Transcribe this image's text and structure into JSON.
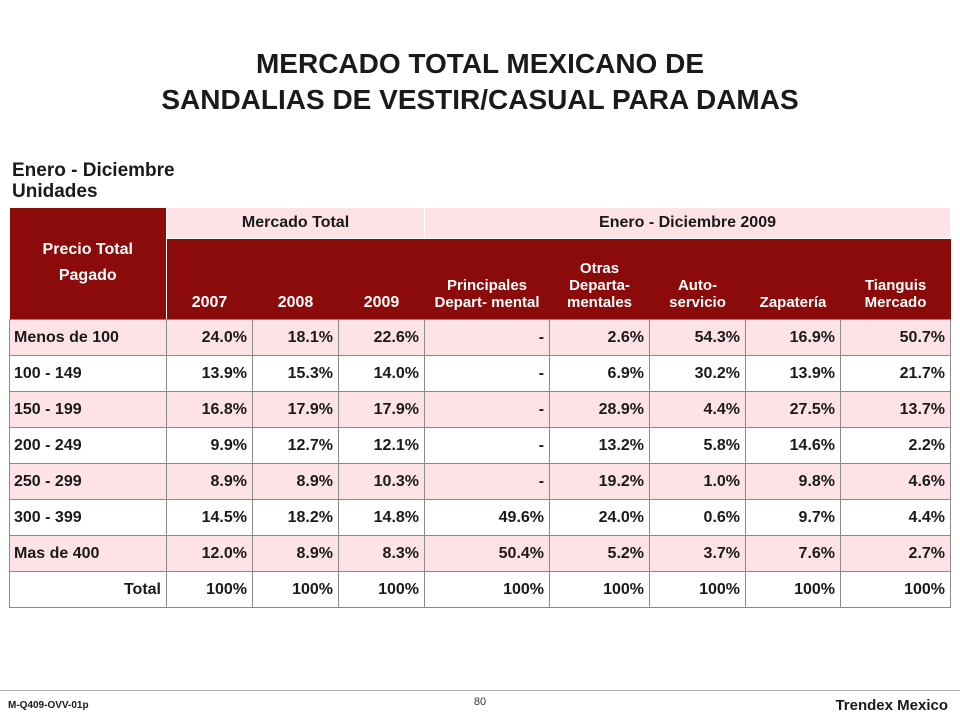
{
  "title": {
    "line1": "MERCADO TOTAL MEXICANO DE",
    "line2": "SANDALIAS DE VESTIR/CASUAL PARA DAMAS"
  },
  "subtitle": {
    "line1": "Enero - Diciembre",
    "line2": "Unidades"
  },
  "table": {
    "corner_line1": "Precio Total",
    "corner_line2": "Pagado",
    "group1": "Mercado Total",
    "group2": "Enero - Diciembre 2009",
    "columns": [
      "2007",
      "2008",
      "2009",
      "Principales Depart- mental",
      "Otras Departa- mentales",
      "Auto- servicio",
      "Zapatería",
      "Tianguis Mercado"
    ],
    "rows": [
      {
        "label": "Menos de 100",
        "values": [
          "24.0%",
          "18.1%",
          "22.6%",
          "-",
          "2.6%",
          "54.3%",
          "16.9%",
          "50.7%"
        ]
      },
      {
        "label": "100 - 149",
        "values": [
          "13.9%",
          "15.3%",
          "14.0%",
          "-",
          "6.9%",
          "30.2%",
          "13.9%",
          "21.7%"
        ]
      },
      {
        "label": "150 - 199",
        "values": [
          "16.8%",
          "17.9%",
          "17.9%",
          "-",
          "28.9%",
          "4.4%",
          "27.5%",
          "13.7%"
        ]
      },
      {
        "label": "200 - 249",
        "values": [
          "9.9%",
          "12.7%",
          "12.1%",
          "-",
          "13.2%",
          "5.8%",
          "14.6%",
          "2.2%"
        ]
      },
      {
        "label": "250 - 299",
        "values": [
          "8.9%",
          "8.9%",
          "10.3%",
          "-",
          "19.2%",
          "1.0%",
          "9.8%",
          "4.6%"
        ]
      },
      {
        "label": "300 - 399",
        "values": [
          "14.5%",
          "18.2%",
          "14.8%",
          "49.6%",
          "24.0%",
          "0.6%",
          "9.7%",
          "4.4%"
        ]
      },
      {
        "label": "Mas de 400",
        "values": [
          "12.0%",
          "8.9%",
          "8.3%",
          "50.4%",
          "5.2%",
          "3.7%",
          "7.6%",
          "2.7%"
        ]
      },
      {
        "label": "Total",
        "values": [
          "100%",
          "100%",
          "100%",
          "100%",
          "100%",
          "100%",
          "100%",
          "100%"
        ]
      }
    ]
  },
  "footer": {
    "code": "M-Q409-OVV-01p",
    "page": "80",
    "brand": "Trendex Mexico"
  },
  "colors": {
    "header_dark": "#8b0a0a",
    "row_shade": "#fde3e5"
  }
}
